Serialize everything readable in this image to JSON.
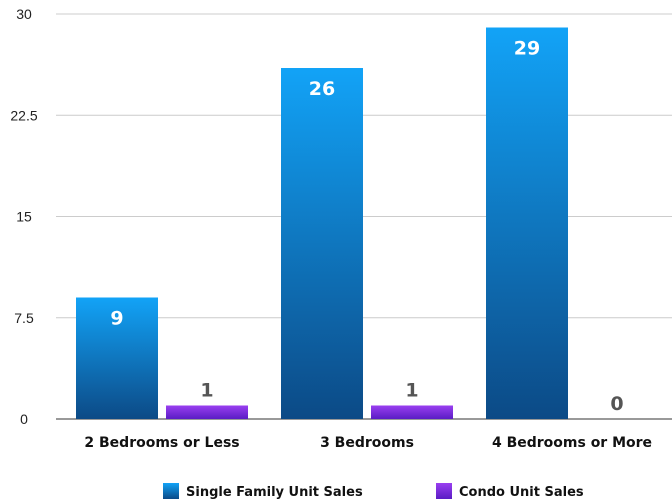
{
  "chart_data": {
    "type": "bar",
    "categories": [
      "2 Bedrooms or Less",
      "3 Bedrooms",
      "4 Bedrooms or More"
    ],
    "series": [
      {
        "name": "Single Family Unit Sales",
        "values": [
          9,
          26,
          29
        ],
        "color": "#1a8fe0"
      },
      {
        "name": "Condo Unit Sales",
        "values": [
          1,
          1,
          0
        ],
        "color": "#7a2be0"
      }
    ],
    "ylim": [
      0,
      30
    ],
    "yticks": [
      0,
      7.5,
      15,
      22.5,
      30
    ],
    "ytick_labels": [
      "0",
      "7.5",
      "15",
      "22.5",
      "30"
    ],
    "grid": true,
    "legend_position": "bottom",
    "title": "",
    "xlabel": "",
    "ylabel": ""
  }
}
